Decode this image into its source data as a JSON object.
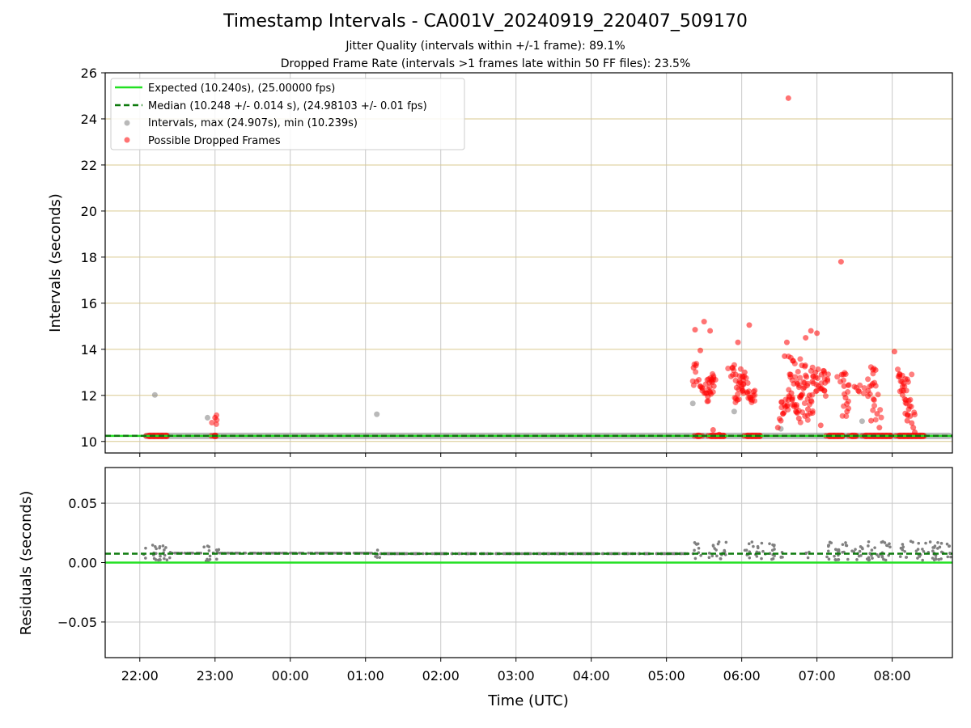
{
  "chart_data": [
    {
      "type": "scatter",
      "title": "Timestamp Intervals - CA001V_20240919_220407_509170",
      "subtitle_lines": [
        "Jitter Quality (intervals within +/-1 frame): 89.1%",
        "Dropped Frame Rate (intervals >1 frames late within 50 FF files): 23.5%"
      ],
      "ylabel": "Intervals (seconds)",
      "ylim": [
        9.5,
        26
      ],
      "yticks": [
        10,
        12,
        14,
        16,
        18,
        20,
        22,
        24,
        26
      ],
      "xlim": [
        21.54,
        32.8
      ],
      "xticks": [
        22,
        23,
        24,
        25,
        26,
        27,
        28,
        29,
        30,
        31,
        32
      ],
      "xtick_labels": [
        "22:00",
        "23:00",
        "00:00",
        "01:00",
        "02:00",
        "03:00",
        "04:00",
        "05:00",
        "06:00",
        "07:00",
        "08:00"
      ],
      "grid": true,
      "legend_position": "upper-left",
      "legend": [
        "Expected (10.240s), (25.00000 fps)",
        "Median (10.248 +/- 0.014 s), (24.98103 +/- 0.01 fps)",
        "Intervals, max (24.907s), min (10.239s)",
        "Possible Dropped Frames"
      ],
      "expected_interval": 10.24,
      "median_interval": 10.248,
      "series": [
        {
          "kind": "normal_intervals",
          "color": "#808080",
          "points": [
            [
              22.2,
              12.02
            ],
            [
              22.9,
              11.03
            ],
            [
              25.15,
              11.18
            ],
            [
              29.35,
              11.65
            ],
            [
              29.9,
              11.3
            ],
            [
              30.52,
              10.55
            ],
            [
              31.6,
              10.88
            ]
          ]
        },
        {
          "kind": "dropped_frames",
          "color": "#ff0000",
          "points": [
            [
              23.0,
              11.03
            ],
            [
              29.38,
              14.85
            ],
            [
              29.45,
              13.95
            ],
            [
              29.5,
              15.2
            ],
            [
              29.58,
              14.8
            ],
            [
              29.36,
              13.2
            ],
            [
              29.4,
              12.6
            ],
            [
              29.48,
              12.3
            ],
            [
              29.52,
              12.1
            ],
            [
              29.55,
              11.95
            ],
            [
              29.6,
              12.7
            ],
            [
              29.63,
              12.4
            ],
            [
              29.57,
              12.55
            ],
            [
              29.62,
              10.5
            ],
            [
              29.7,
              10.3
            ],
            [
              29.88,
              13.2
            ],
            [
              29.92,
              12.9
            ],
            [
              29.96,
              12.5
            ],
            [
              30.0,
              12.3
            ],
            [
              30.04,
              13.0
            ],
            [
              30.08,
              12.1
            ],
            [
              30.12,
              11.9
            ],
            [
              30.15,
              12.0
            ],
            [
              29.94,
              11.8
            ],
            [
              30.02,
              12.65
            ],
            [
              29.95,
              14.3
            ],
            [
              30.1,
              15.05
            ],
            [
              30.48,
              10.6
            ],
            [
              30.52,
              10.9
            ],
            [
              30.55,
              11.2
            ],
            [
              30.58,
              11.5
            ],
            [
              30.62,
              11.8
            ],
            [
              30.66,
              12.1
            ],
            [
              30.7,
              11.6
            ],
            [
              30.74,
              12.5
            ],
            [
              30.78,
              11.9
            ],
            [
              30.82,
              12.3
            ],
            [
              30.86,
              12.8
            ],
            [
              30.9,
              12.0
            ],
            [
              30.94,
              12.6
            ],
            [
              30.98,
              13.0
            ],
            [
              31.02,
              12.4
            ],
            [
              31.06,
              12.9
            ],
            [
              31.1,
              12.2
            ],
            [
              31.14,
              12.7
            ],
            [
              30.72,
              11.3
            ],
            [
              30.84,
              11.1
            ],
            [
              30.57,
              13.7
            ],
            [
              30.6,
              14.3
            ],
            [
              30.65,
              12.9
            ],
            [
              30.68,
              13.5
            ],
            [
              30.8,
              13.3
            ],
            [
              30.85,
              14.5
            ],
            [
              30.92,
              14.8
            ],
            [
              31.0,
              14.7
            ],
            [
              30.76,
              11.0
            ],
            [
              30.88,
              11.4
            ],
            [
              31.05,
              10.7
            ],
            [
              30.62,
              24.9
            ],
            [
              31.32,
              17.8
            ],
            [
              31.33,
              12.9
            ],
            [
              31.36,
              12.4
            ],
            [
              31.38,
              11.9
            ],
            [
              31.4,
              11.3
            ],
            [
              31.55,
              12.2
            ],
            [
              31.68,
              12.2
            ],
            [
              31.74,
              12.5
            ],
            [
              31.78,
              13.1
            ],
            [
              31.76,
              11.8
            ],
            [
              31.72,
              10.9
            ],
            [
              31.83,
              10.6
            ],
            [
              31.8,
              11.2
            ],
            [
              32.03,
              13.9
            ],
            [
              32.1,
              12.9
            ],
            [
              32.13,
              12.6
            ],
            [
              32.15,
              12.2
            ],
            [
              32.18,
              11.8
            ],
            [
              32.2,
              12.7
            ],
            [
              32.22,
              11.4
            ],
            [
              32.24,
              11.1
            ],
            [
              32.26,
              10.8
            ],
            [
              32.28,
              10.6
            ],
            [
              32.3,
              10.4
            ],
            [
              32.2,
              10.9
            ]
          ],
          "clusters": [
            [
              22.08,
              22.4
            ],
            [
              22.95,
              23.05
            ],
            [
              29.37,
              29.48
            ],
            [
              29.55,
              29.8
            ],
            [
              30.03,
              30.28
            ],
            [
              31.12,
              31.38
            ],
            [
              31.42,
              31.55
            ],
            [
              31.6,
              32.02
            ],
            [
              32.05,
              32.45
            ]
          ]
        },
        {
          "kind": "expected_line",
          "color": "#22e022",
          "y": 10.24
        },
        {
          "kind": "median_line",
          "color": "#0d7a0d",
          "y": 10.248
        }
      ],
      "interval_band_segments": [
        [
          22.05,
          32.8
        ]
      ]
    },
    {
      "type": "scatter",
      "ylabel": "Residuals (seconds)",
      "xlabel": "Time (UTC)",
      "ylim": [
        -0.08,
        0.08
      ],
      "yticks": [
        -0.05,
        0.0,
        0.05
      ],
      "ytick_labels": [
        "−0.05",
        "0.00",
        "0.05"
      ],
      "grid": true,
      "series": [
        {
          "kind": "expected_line",
          "color": "#22e022",
          "y": 0.0
        },
        {
          "kind": "median_line",
          "color": "#0d7a0d",
          "y": 0.0075
        },
        {
          "kind": "residuals",
          "color": "#808080",
          "clusters": [
            {
              "x": [
                22.05,
                22.42
              ],
              "y": [
                0.002,
                0.015
              ]
            },
            {
              "x": [
                22.42,
                22.85
              ],
              "y": [
                0.006,
                0.01
              ]
            },
            {
              "x": [
                22.85,
                23.05
              ],
              "y": [
                -0.002,
                0.015
              ]
            },
            {
              "x": [
                23.05,
                25.1
              ],
              "y": [
                0.007,
                0.009
              ]
            },
            {
              "x": [
                25.1,
                25.2
              ],
              "y": [
                0.003,
                0.011
              ]
            },
            {
              "x": [
                25.2,
                29.37
              ],
              "y": [
                0.007,
                0.008
              ]
            },
            {
              "x": [
                29.37,
                29.5
              ],
              "y": [
                0.002,
                0.018
              ]
            },
            {
              "x": [
                29.55,
                29.8
              ],
              "y": [
                0.002,
                0.018
              ]
            },
            {
              "x": [
                30.03,
                30.45
              ],
              "y": [
                0.002,
                0.018
              ]
            },
            {
              "x": [
                30.52,
                30.56
              ],
              "y": [
                0.004,
                0.01
              ]
            },
            {
              "x": [
                30.85,
                30.9
              ],
              "y": [
                0.004,
                0.01
              ]
            },
            {
              "x": [
                31.12,
                32.02
              ],
              "y": [
                0.002,
                0.018
              ]
            },
            {
              "x": [
                32.05,
                32.8
              ],
              "y": [
                0.002,
                0.018
              ]
            }
          ]
        }
      ]
    }
  ]
}
